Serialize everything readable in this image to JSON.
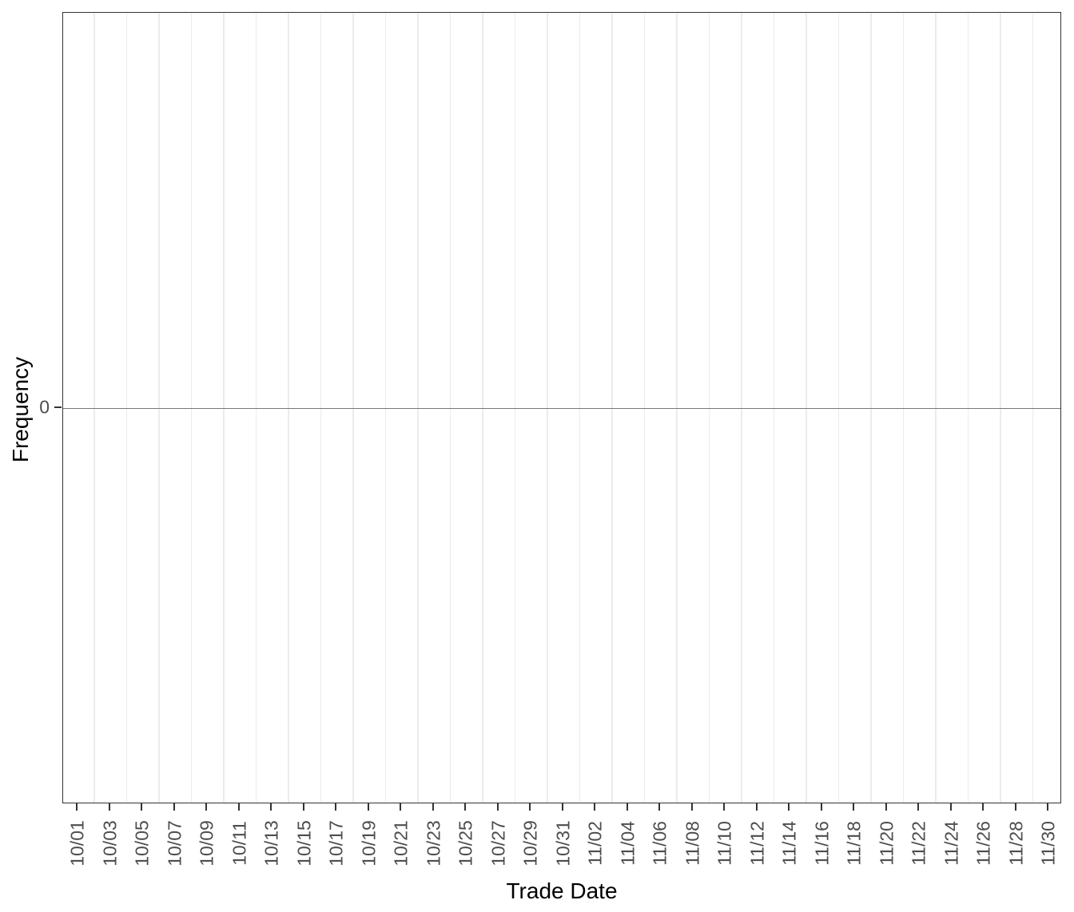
{
  "chart_data": {
    "type": "bar",
    "title": "",
    "xlabel": "Trade Date",
    "ylabel": "Frequency",
    "x_tick_labels": [
      "10/01",
      "10/03",
      "10/05",
      "10/07",
      "10/09",
      "10/11",
      "10/13",
      "10/15",
      "10/17",
      "10/19",
      "10/21",
      "10/23",
      "10/25",
      "10/27",
      "10/29",
      "10/31",
      "11/02",
      "11/04",
      "11/06",
      "11/08",
      "11/10",
      "11/12",
      "11/14",
      "11/16",
      "11/18",
      "11/20",
      "11/22",
      "11/24",
      "11/26",
      "11/28",
      "11/30"
    ],
    "y_tick_labels": [
      "0"
    ],
    "series": [],
    "zero_line_y": 0,
    "ylim": [
      -1,
      1
    ],
    "grid": {
      "vertical_minor_between_ticks": true,
      "horizontal": false
    },
    "legend_position": "none"
  },
  "style": {
    "background": "#ffffff",
    "panel_border": "#333333",
    "grid_minor": "#ebebeb",
    "zero_line": "#777777",
    "tick_color": "#333333",
    "axis_text_color": "#4d4d4d",
    "axis_title_color": "#000000"
  }
}
